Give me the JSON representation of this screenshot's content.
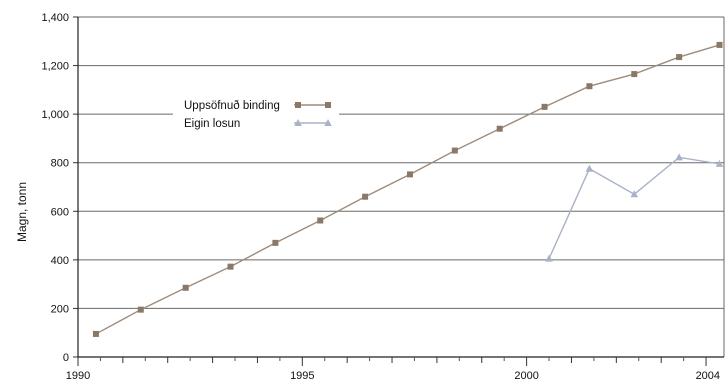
{
  "chart_data": {
    "type": "line",
    "title": "",
    "xlabel": "",
    "ylabel": "Magn, tonn",
    "xlim": [
      1990,
      2004.4
    ],
    "ylim": [
      0,
      1400
    ],
    "x_ticks": [
      1990,
      1995,
      2000,
      2004
    ],
    "x_tick_labels": [
      "1990",
      "1995",
      "2000",
      "2004"
    ],
    "y_ticks": [
      0,
      200,
      400,
      600,
      800,
      1000,
      1200,
      1400
    ],
    "y_tick_labels": [
      "0",
      "200",
      "400",
      "600",
      "800",
      "1,000",
      "1,200",
      "1,400"
    ],
    "grid": "horizontal",
    "legend_position": "upper-left",
    "series": [
      {
        "name": "Uppsöfnuð binding",
        "color": "#a08c7a",
        "marker_color": "#8a7868",
        "marker": "square",
        "x": [
          1990.4,
          1991.4,
          1992.4,
          1993.4,
          1994.4,
          1995.4,
          1996.4,
          1997.4,
          1998.4,
          1999.4,
          2000.4,
          2001.4,
          2002.4,
          2003.4,
          2004.3
        ],
        "values": [
          95,
          195,
          285,
          372,
          470,
          562,
          660,
          752,
          850,
          940,
          1030,
          1115,
          1165,
          1235,
          1285
        ]
      },
      {
        "name": "Eigin losun",
        "color": "#a9b3c8",
        "marker_color": "#a9b3c8",
        "marker": "triangle",
        "x": [
          2000.5,
          2001.4,
          2002.4,
          2003.4,
          2004.3
        ],
        "values": [
          405,
          775,
          670,
          822,
          795
        ]
      }
    ]
  }
}
